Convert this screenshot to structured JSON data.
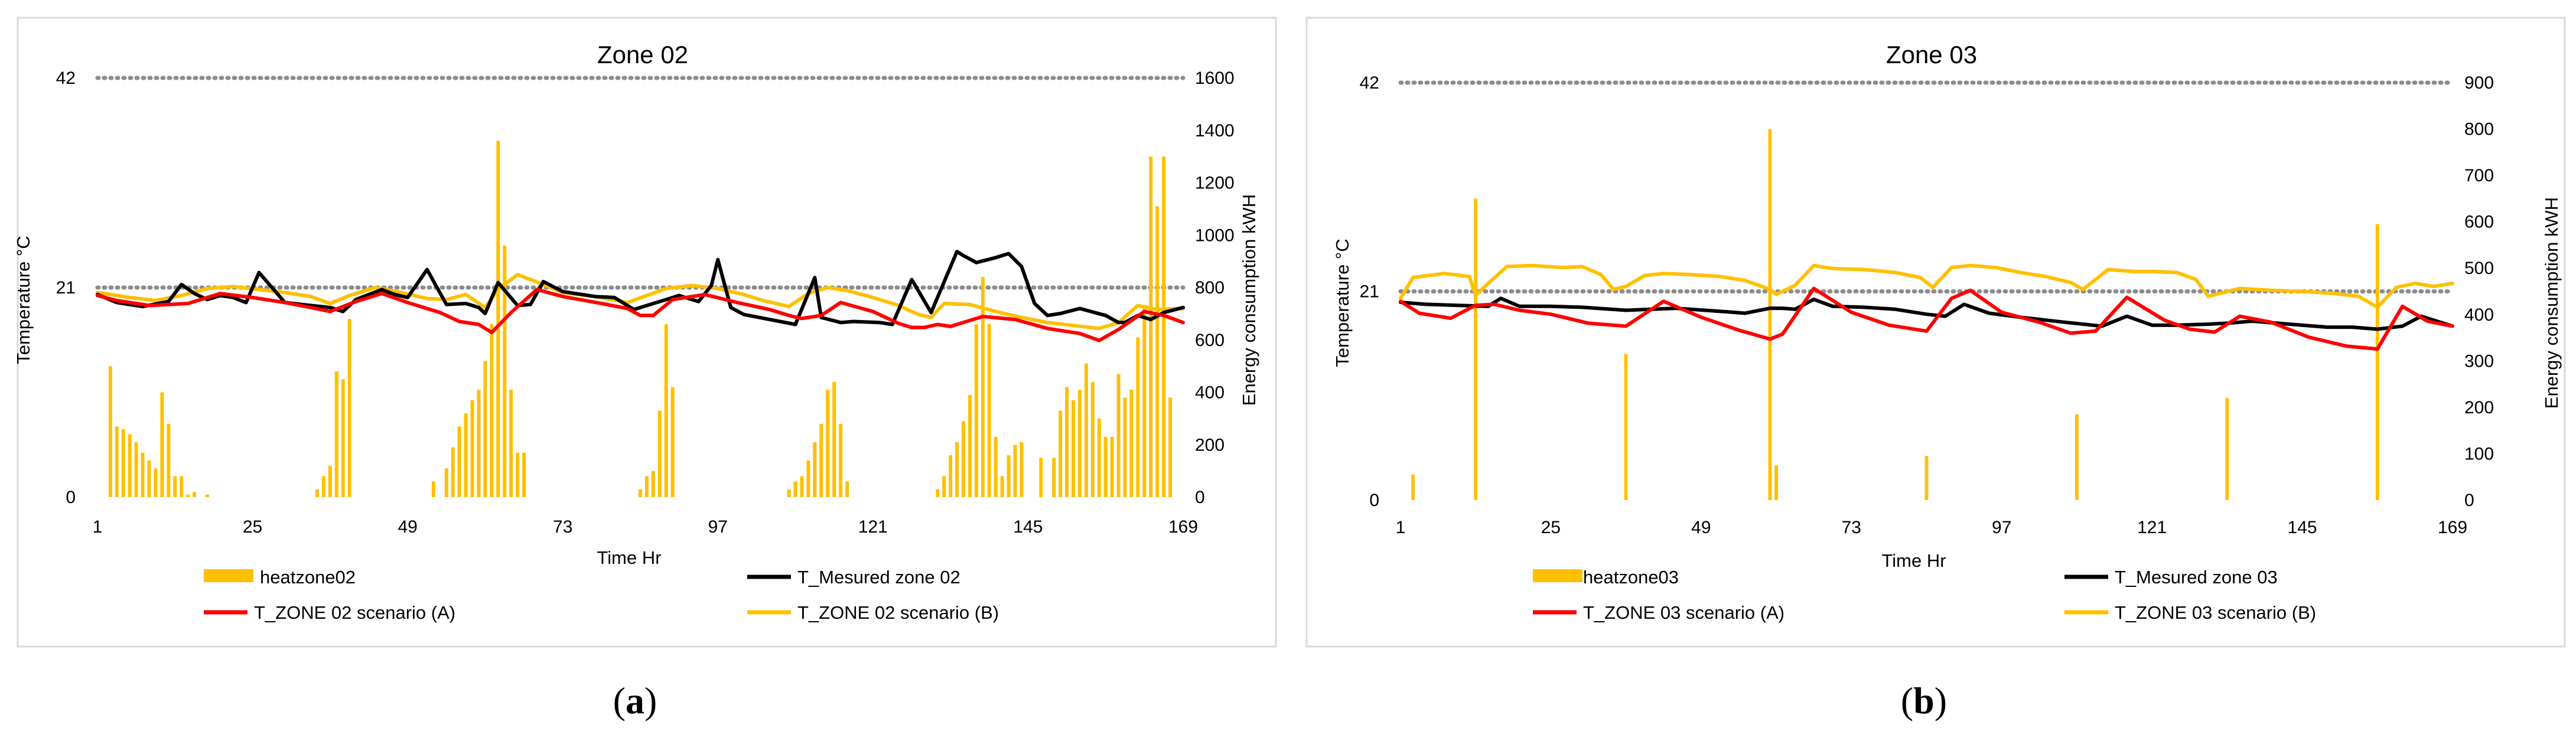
{
  "chart_data": [
    {
      "id": "a",
      "type": "bar+line",
      "caption_letter": "a",
      "title": "Zone 02",
      "xlabel": "Time  Hr",
      "ylabel_left": "Temperature °C",
      "ylabel_right": "Energy consumption  kWH",
      "xlim": [
        1,
        169
      ],
      "x_ticks": [
        1,
        25,
        49,
        73,
        97,
        121,
        145,
        169
      ],
      "ylim_left": [
        0,
        42
      ],
      "y_ticks_left": [
        0,
        21,
        42
      ],
      "ylim_right": [
        0,
        1600
      ],
      "y_ticks_right": [
        0,
        200,
        400,
        600,
        800,
        1000,
        1200,
        1400,
        1600
      ],
      "dotted_reference_lines": [
        42,
        21
      ],
      "colors": {
        "bars": "#FFC000",
        "measured": "#000000",
        "scenario_a": "#FF0000",
        "scenario_b": "#FFC000",
        "refline": "#8C8C8C"
      },
      "legend": [
        "heatzone02",
        "T_Mesured zone 02",
        "T_ZONE 02   scenario (A)",
        "T_ZONE 02   scenario (B)"
      ],
      "bars": {
        "name": "heatzone02",
        "x": [
          3,
          4,
          5,
          6,
          7,
          8,
          9,
          10,
          11,
          12,
          13,
          14,
          15,
          16,
          18,
          35,
          36,
          37,
          38,
          39,
          40,
          53,
          55,
          56,
          57,
          58,
          59,
          60,
          61,
          62,
          63,
          64,
          65,
          66,
          67,
          85,
          86,
          87,
          88,
          89,
          90,
          108,
          109,
          110,
          111,
          112,
          113,
          114,
          115,
          116,
          117,
          131,
          132,
          133,
          134,
          135,
          136,
          137,
          138,
          139,
          140,
          141,
          142,
          143,
          144,
          147,
          149,
          150,
          151,
          152,
          153,
          154,
          155,
          156,
          157,
          158,
          159,
          160,
          161,
          162,
          163,
          164,
          165,
          166,
          167
        ],
        "values": [
          500,
          270,
          260,
          240,
          210,
          170,
          140,
          110,
          400,
          280,
          80,
          80,
          10,
          20,
          10,
          30,
          80,
          120,
          480,
          450,
          680,
          60,
          110,
          190,
          270,
          320,
          370,
          410,
          520,
          660,
          1360,
          960,
          410,
          170,
          170,
          30,
          80,
          100,
          330,
          660,
          420,
          30,
          60,
          80,
          140,
          210,
          280,
          410,
          440,
          280,
          60,
          30,
          80,
          160,
          210,
          290,
          390,
          660,
          840,
          660,
          230,
          80,
          160,
          200,
          210,
          150,
          150,
          330,
          420,
          370,
          410,
          510,
          440,
          300,
          230,
          230,
          470,
          380,
          410,
          610,
          730,
          1300,
          1110,
          1300,
          380
        ]
      },
      "series": [
        {
          "name": "T_Mesured zone 02",
          "x": [
            1,
            4,
            8,
            12,
            14,
            16,
            18,
            20,
            22,
            24,
            26,
            30,
            34,
            37,
            39,
            41,
            45,
            47,
            49,
            52,
            55,
            58,
            60,
            61,
            63,
            66,
            68,
            70,
            73,
            78,
            81,
            84,
            88,
            91,
            94,
            96,
            97,
            99,
            101,
            105,
            109,
            112,
            113,
            116,
            118,
            122,
            124,
            127,
            130,
            134,
            135,
            137,
            140,
            142,
            144,
            146,
            148,
            150,
            153,
            157,
            159,
            160,
            162,
            164,
            166,
            169
          ],
          "y": [
            20.3,
            19.5,
            19.1,
            19.6,
            21.3,
            20.4,
            19.8,
            20.2,
            20.0,
            19.5,
            22.5,
            19.5,
            19.2,
            19.0,
            18.6,
            19.8,
            20.8,
            20.3,
            20.0,
            22.8,
            19.3,
            19.4,
            19.0,
            18.4,
            21.5,
            19.2,
            19.3,
            21.6,
            20.6,
            20.1,
            20.0,
            18.8,
            19.6,
            20.2,
            19.6,
            21.2,
            23.8,
            19.0,
            18.3,
            17.8,
            17.3,
            22.0,
            18.0,
            17.5,
            17.6,
            17.5,
            17.3,
            21.8,
            18.5,
            24.6,
            24.2,
            23.5,
            24.0,
            24.4,
            23.1,
            19.4,
            18.2,
            18.4,
            18.9,
            18.2,
            17.5,
            17.5,
            18.2,
            17.8,
            18.5,
            19.0
          ]
        },
        {
          "name": "T_ZONE 02   scenario (A)",
          "x": [
            1,
            4,
            9,
            15,
            20,
            25,
            30,
            34,
            37,
            41,
            45,
            49,
            54,
            57,
            60,
            62,
            65,
            69,
            73,
            79,
            83,
            85,
            87,
            90,
            95,
            100,
            105,
            108,
            110,
            113,
            116,
            121,
            125,
            127,
            129,
            131,
            133,
            138,
            143,
            148,
            153,
            156,
            159,
            163,
            166,
            169
          ],
          "y": [
            20.2,
            19.7,
            19.2,
            19.4,
            20.4,
            20.0,
            19.5,
            19.0,
            18.6,
            19.6,
            20.4,
            19.5,
            18.5,
            17.6,
            17.3,
            16.5,
            18.5,
            20.8,
            20.1,
            19.4,
            18.9,
            18.2,
            18.2,
            19.8,
            20.3,
            19.5,
            18.8,
            18.2,
            17.9,
            18.2,
            19.5,
            18.6,
            17.4,
            17.0,
            17.0,
            17.3,
            17.1,
            18.1,
            17.8,
            16.9,
            16.4,
            15.7,
            16.8,
            18.6,
            18.2,
            17.5
          ]
        },
        {
          "name": "T_ZONE 02   scenario (B)",
          "x": [
            1,
            6,
            10,
            14,
            18,
            22,
            26,
            30,
            34,
            37,
            40,
            44,
            48,
            52,
            55,
            58,
            61,
            63,
            66,
            70,
            73,
            78,
            83,
            86,
            89,
            93,
            97,
            101,
            104,
            108,
            111,
            114,
            117,
            121,
            125,
            128,
            130,
            132,
            136,
            140,
            144,
            148,
            152,
            156,
            159,
            162,
            165,
            169
          ],
          "y": [
            20.5,
            20.0,
            19.7,
            20.2,
            20.9,
            21.1,
            20.8,
            20.5,
            20.1,
            19.4,
            20.2,
            21.0,
            20.5,
            19.9,
            19.8,
            20.3,
            19.0,
            20.8,
            22.3,
            21.3,
            20.5,
            20.1,
            19.5,
            20.2,
            20.9,
            21.2,
            20.9,
            20.3,
            19.7,
            19.1,
            20.4,
            21.0,
            20.7,
            20.0,
            19.2,
            18.3,
            18.0,
            19.4,
            19.3,
            18.6,
            18.0,
            17.5,
            17.2,
            16.9,
            17.5,
            19.2,
            18.8,
            18.9
          ]
        }
      ]
    },
    {
      "id": "b",
      "type": "bar+line",
      "caption_letter": "b",
      "title": "Zone 03",
      "xlabel": "Time Hr",
      "ylabel_left": "Temperature °C",
      "ylabel_right": "Energy consumption  kWH",
      "xlim": [
        1,
        169
      ],
      "x_ticks": [
        1,
        25,
        49,
        73,
        97,
        121,
        145,
        169
      ],
      "ylim_left": [
        0,
        42
      ],
      "y_ticks_left": [
        0,
        21,
        42
      ],
      "ylim_right": [
        0,
        900
      ],
      "y_ticks_right": [
        0,
        100,
        200,
        300,
        400,
        500,
        600,
        700,
        800,
        900
      ],
      "dotted_reference_lines": [
        42,
        21
      ],
      "colors": {
        "bars": "#FFC000",
        "measured": "#000000",
        "scenario_a": "#FF0000",
        "scenario_b": "#FFC000",
        "refline": "#8C8C8C"
      },
      "legend": [
        "heatzone03",
        "T_Mesured zone 03",
        "T_ZONE 03    scenario (A)",
        "T_ZONE 03    scenario (B)"
      ],
      "bars": {
        "name": "heatzone03",
        "x": [
          3,
          13,
          37,
          60,
          61,
          85,
          109,
          133,
          157
        ],
        "values": [
          55,
          650,
          315,
          800,
          75,
          95,
          185,
          220,
          595
        ]
      },
      "series": [
        {
          "name": "T_Mesured zone 03",
          "x": [
            1,
            5,
            10,
            15,
            17,
            20,
            25,
            30,
            37,
            45,
            52,
            56,
            60,
            62,
            64,
            67,
            70,
            75,
            80,
            85,
            88,
            91,
            95,
            100,
            107,
            113,
            117,
            121,
            125,
            130,
            133,
            137,
            141,
            145,
            149,
            153,
            157,
            161,
            164,
            169
          ],
          "y": [
            19.9,
            19.7,
            19.6,
            19.5,
            20.3,
            19.5,
            19.5,
            19.4,
            19.1,
            19.3,
            19.0,
            18.8,
            19.3,
            19.3,
            19.2,
            20.2,
            19.5,
            19.4,
            19.2,
            18.7,
            18.5,
            19.7,
            18.8,
            18.4,
            17.9,
            17.5,
            18.5,
            17.6,
            17.6,
            17.7,
            17.8,
            18.0,
            17.8,
            17.6,
            17.4,
            17.4,
            17.2,
            17.5,
            18.5,
            17.5
          ]
        },
        {
          "name": "T_ZONE 03    scenario (A)",
          "x": [
            1,
            4,
            9,
            13,
            16,
            20,
            25,
            31,
            37,
            43,
            49,
            55,
            60,
            62,
            67,
            73,
            79,
            85,
            89,
            92,
            97,
            103,
            108,
            112,
            117,
            123,
            127,
            131,
            135,
            140,
            146,
            152,
            157,
            161,
            165,
            169
          ],
          "y": [
            20.0,
            18.8,
            18.3,
            19.6,
            19.7,
            19.1,
            18.7,
            17.8,
            17.5,
            20.0,
            18.4,
            17.1,
            16.2,
            16.7,
            21.3,
            18.9,
            17.6,
            17.0,
            20.3,
            21.1,
            18.9,
            17.9,
            16.8,
            17.0,
            20.4,
            18.1,
            17.2,
            16.9,
            18.5,
            17.9,
            16.4,
            15.5,
            15.2,
            19.5,
            18.0,
            17.5
          ]
        },
        {
          "name": "T_ZONE 03   scenario (B)",
          "x": [
            1,
            3,
            8,
            12,
            13,
            15,
            18,
            22,
            27,
            30,
            33,
            35,
            37,
            40,
            43,
            47,
            52,
            56,
            60,
            61,
            64,
            67,
            70,
            75,
            80,
            84,
            86,
            89,
            92,
            96,
            100,
            104,
            108,
            110,
            114,
            118,
            121,
            125,
            128,
            130,
            135,
            140,
            145,
            150,
            154,
            157,
            160,
            163,
            166,
            169
          ],
          "y": [
            20.3,
            22.4,
            22.8,
            22.5,
            20.6,
            21.8,
            23.5,
            23.6,
            23.4,
            23.5,
            22.7,
            21.2,
            21.5,
            22.6,
            22.8,
            22.7,
            22.5,
            22.1,
            21.2,
            20.7,
            21.6,
            23.6,
            23.3,
            23.2,
            22.9,
            22.4,
            21.4,
            23.4,
            23.6,
            23.4,
            22.9,
            22.5,
            21.9,
            21.2,
            23.2,
            23.0,
            23.0,
            22.9,
            22.2,
            20.5,
            21.3,
            21.1,
            21.0,
            20.8,
            20.5,
            19.4,
            21.4,
            21.8,
            21.5,
            21.8
          ]
        }
      ]
    }
  ]
}
